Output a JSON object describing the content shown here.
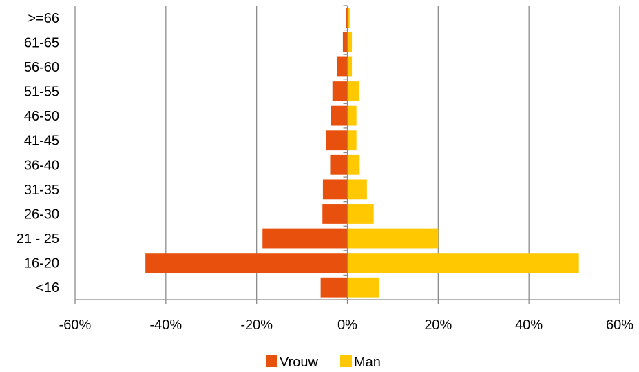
{
  "chart_data": {
    "type": "bar",
    "orientation": "horizontal",
    "stacking": "diverging",
    "categories": [
      ">=66",
      "61-65",
      "56-60",
      "51-55",
      "46-50",
      "41-45",
      "36-40",
      "31-35",
      "26-30",
      "21 - 25",
      "16-20",
      "<16"
    ],
    "series": [
      {
        "name": "Vrouw",
        "color": "#E8500E",
        "values": [
          -0.3,
          -1.0,
          -2.3,
          -3.3,
          -3.7,
          -4.7,
          -3.8,
          -5.4,
          -5.5,
          -18.7,
          -44.5,
          -5.9
        ]
      },
      {
        "name": "Man",
        "color": "#FFC800",
        "values": [
          0.5,
          1.0,
          1.0,
          2.6,
          2.0,
          2.0,
          2.7,
          4.3,
          5.8,
          20.0,
          51.0,
          7.0
        ]
      }
    ],
    "x_ticks": [
      "-60%",
      "-40%",
      "-20%",
      "0%",
      "20%",
      "40%",
      "60%"
    ],
    "xlim": [
      -60,
      60
    ],
    "grid": "vertical",
    "legend_position": "bottom"
  }
}
